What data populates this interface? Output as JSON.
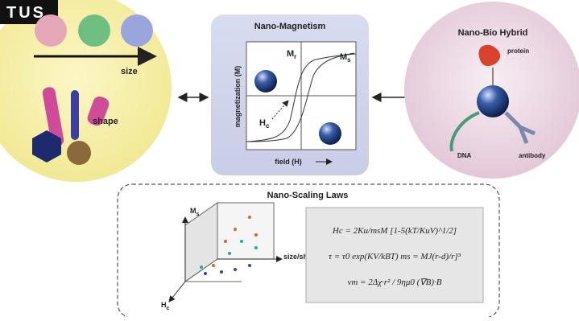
{
  "header": {
    "tag": "TUS"
  },
  "left": {
    "size": "size",
    "shape": "shape"
  },
  "center": {
    "title": "Nano-Magnetism",
    "mr": {
      "base": "M",
      "sub": "r"
    },
    "ms": {
      "base": "M",
      "sub": "s"
    },
    "hc": {
      "base": "H",
      "sub": "c"
    },
    "y_label": "magnetization (M)",
    "x_label": "field (H)"
  },
  "right": {
    "title": "Nano-Bio Hybrid",
    "protein": "protein",
    "dna": "DNA",
    "antibody": "antibody"
  },
  "bottom": {
    "title": "Nano-Scaling Laws",
    "axis_ms": {
      "base": "M",
      "sub": "s"
    },
    "axis_hc": {
      "base": "H",
      "sub": "c"
    },
    "axis_size": "size/shape",
    "equations": [
      "Hc = 2Ku/msM [1-5(kT/KuV)^1/2]",
      "τ = τ0 exp(KV/kBT)     ms = MJ(r-d)/r]³",
      "vm = 2Δχ·r² / 9ημ0 (∇B)·B"
    ]
  }
}
